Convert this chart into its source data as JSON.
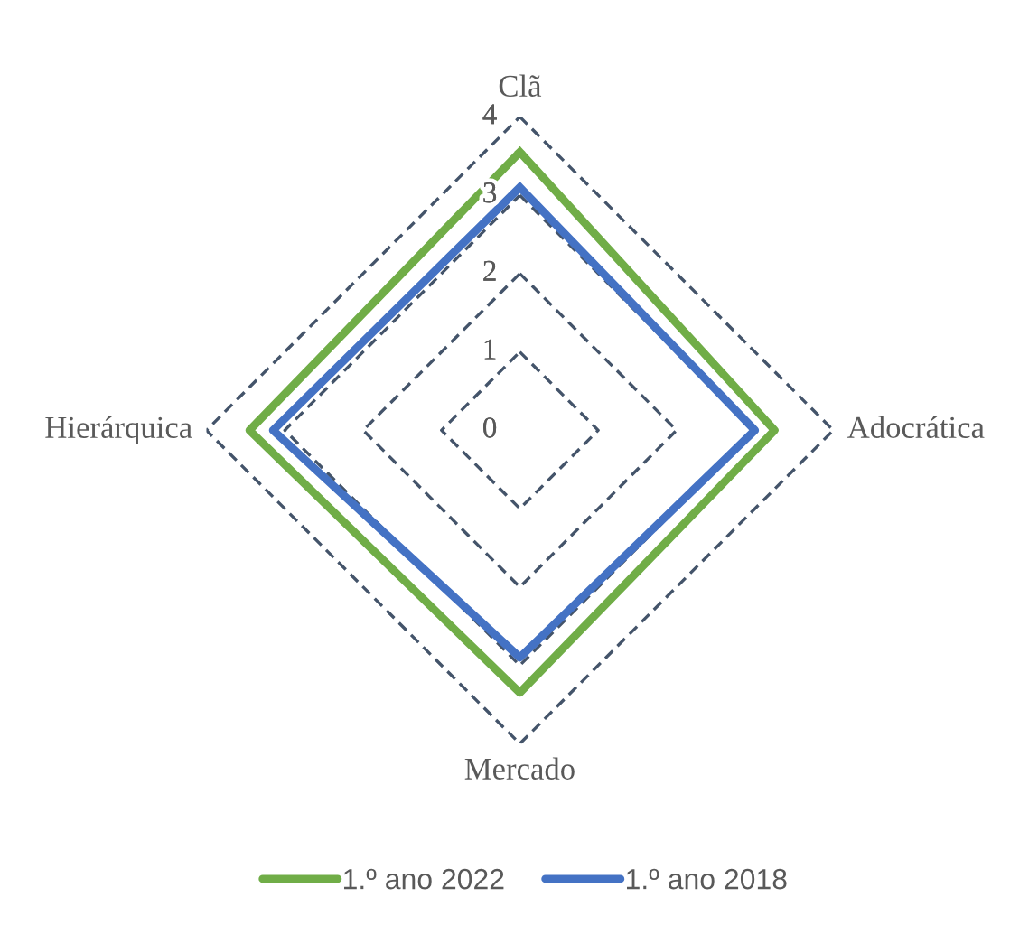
{
  "chart_data": {
    "type": "radar",
    "categories": [
      "Clã",
      "Adocrática",
      "Mercado",
      "Hierárquica"
    ],
    "series": [
      {
        "name": "1.º ano 2022",
        "color": "#70ad47",
        "values": [
          3.55,
          3.25,
          3.35,
          3.45
        ]
      },
      {
        "name": "1.º ano 2018",
        "color": "#4472c4",
        "values": [
          3.1,
          3.0,
          2.9,
          3.15
        ]
      }
    ],
    "ylim": [
      0,
      4
    ],
    "yticks": [
      0,
      1,
      2,
      3,
      4
    ],
    "grid": true,
    "legend": "bottom"
  }
}
